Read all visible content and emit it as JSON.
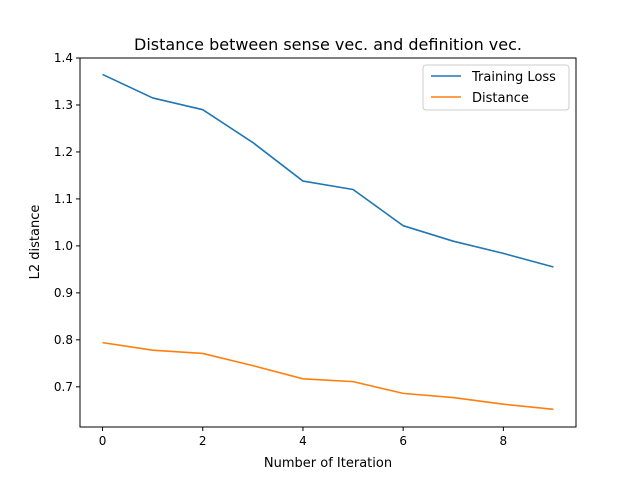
{
  "chart_data": {
    "type": "line",
    "title": "Distance between sense vec. and definition vec.",
    "xlabel": "Number of Iteration",
    "ylabel": "L2 distance",
    "xlim": [
      -0.45,
      9.45
    ],
    "ylim": [
      0.6144,
      1.4
    ],
    "xticks": [
      0,
      2,
      4,
      6,
      8
    ],
    "yticks": [
      0.7,
      0.8,
      0.9,
      1.0,
      1.1,
      1.2,
      1.3,
      1.4
    ],
    "grid": false,
    "legend_position": "top-right",
    "x": [
      0,
      1,
      2,
      3,
      4,
      5,
      6,
      7,
      8,
      9
    ],
    "series": [
      {
        "name": "Training Loss",
        "color": "#1f77b4",
        "values": [
          1.365,
          1.315,
          1.29,
          1.22,
          1.138,
          1.12,
          1.043,
          1.01,
          0.984,
          0.955
        ]
      },
      {
        "name": "Distance",
        "color": "#ff7f0e",
        "values": [
          0.794,
          0.778,
          0.771,
          0.745,
          0.717,
          0.711,
          0.686,
          0.677,
          0.663,
          0.652
        ]
      }
    ]
  }
}
